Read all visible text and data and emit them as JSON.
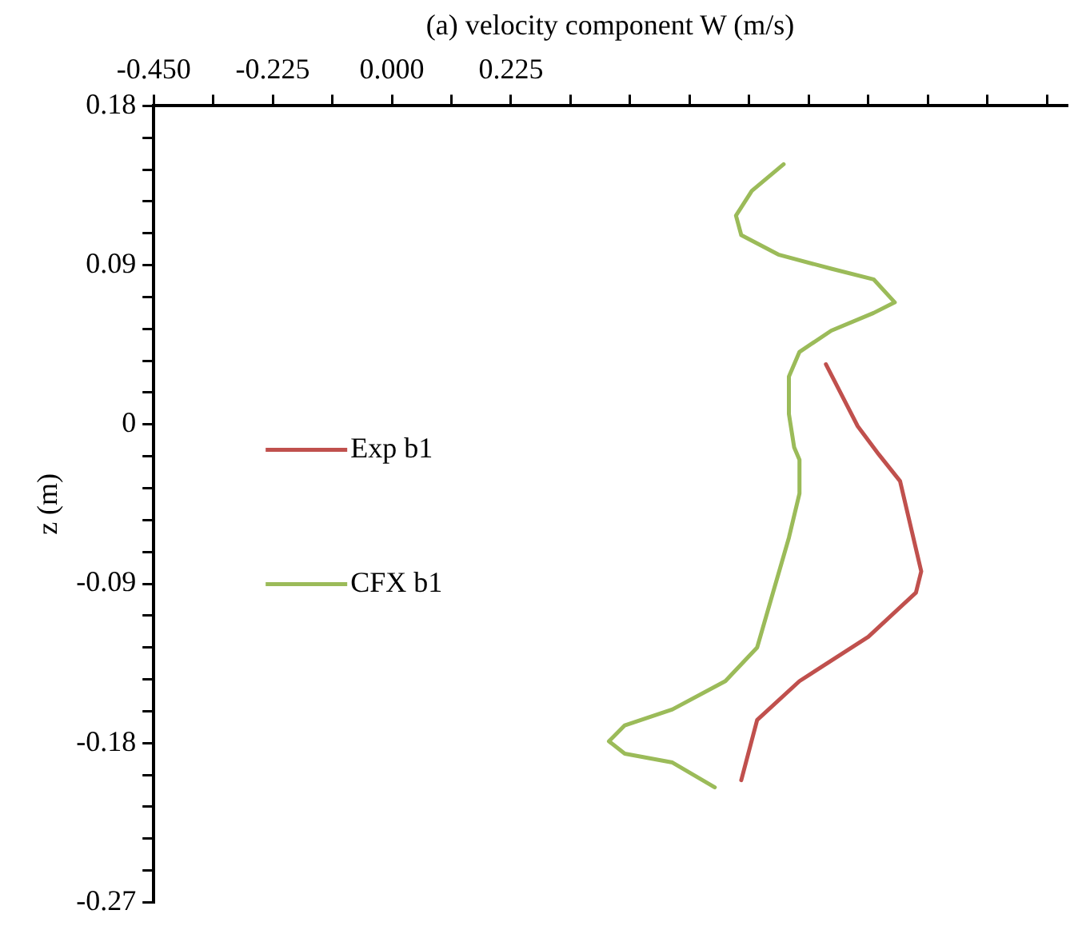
{
  "chart_data": {
    "type": "line",
    "xlabel": "(a) velocity component W (m/s)",
    "ylabel": "z (m)",
    "xlim": [
      -0.45,
      1.275
    ],
    "xticks": [
      {
        "value": -0.45,
        "label": "-0.450"
      },
      {
        "value": -0.3375,
        "label": null
      },
      {
        "value": -0.225,
        "label": "-0.225"
      },
      {
        "value": -0.1125,
        "label": null
      },
      {
        "value": 0,
        "label": "0.000"
      },
      {
        "value": 0.1125,
        "label": null
      },
      {
        "value": 0.225,
        "label": "0.225"
      },
      {
        "value": 0.3375,
        "label": null
      },
      {
        "value": 0.45,
        "label": null
      },
      {
        "value": 0.5625,
        "label": null
      },
      {
        "value": 0.675,
        "label": null
      },
      {
        "value": 0.7875,
        "label": null
      },
      {
        "value": 0.9,
        "label": null
      },
      {
        "value": 1.0125,
        "label": null
      },
      {
        "value": 1.125,
        "label": null
      },
      {
        "value": 1.2375,
        "label": null
      }
    ],
    "ylim": [
      -0.27,
      0.18
    ],
    "yticks": [
      0.18,
      {
        "value": 0.162,
        "label": null
      },
      {
        "value": 0.144,
        "label": null
      },
      {
        "value": 0.126,
        "label": null
      },
      {
        "value": 0.108,
        "label": null
      },
      0.09,
      {
        "value": 0.072,
        "label": null
      },
      {
        "value": 0.054,
        "label": null
      },
      {
        "value": 0.036,
        "label": null
      },
      {
        "value": 0.018,
        "label": null
      },
      0,
      {
        "value": -0.018,
        "label": null
      },
      {
        "value": -0.036,
        "label": null
      },
      {
        "value": -0.054,
        "label": null
      },
      {
        "value": -0.072,
        "label": null
      },
      -0.09,
      {
        "value": -0.108,
        "label": null
      },
      {
        "value": -0.126,
        "label": null
      },
      {
        "value": -0.144,
        "label": null
      },
      {
        "value": -0.162,
        "label": null
      },
      -0.18,
      {
        "value": -0.198,
        "label": null
      },
      {
        "value": -0.216,
        "label": null
      },
      {
        "value": -0.234,
        "label": null
      },
      {
        "value": -0.252,
        "label": null
      },
      -0.27
    ],
    "grid": false,
    "legend": "center left",
    "marker": "none",
    "line_style": "solid",
    "series": [
      {
        "name": "Exp b1",
        "color": "#c0504d",
        "x": [
          0.82,
          0.88,
          0.92,
          0.96,
          1.0,
          0.99,
          0.9,
          0.77,
          0.69,
          0.66
        ],
        "values": [
          0.034,
          -0.001,
          -0.017,
          -0.032,
          -0.083,
          -0.095,
          -0.12,
          -0.145,
          -0.167,
          -0.201
        ]
      },
      {
        "name": "CFX b1",
        "color": "#9bbb59",
        "x": [
          0.74,
          0.68,
          0.65,
          0.66,
          0.73,
          0.83,
          0.91,
          0.95,
          0.91,
          0.83,
          0.77,
          0.75,
          0.75,
          0.76,
          0.77,
          0.77,
          0.75,
          0.72,
          0.69,
          0.63,
          0.53,
          0.44,
          0.41,
          0.44,
          0.53,
          0.61
        ],
        "values": [
          0.147,
          0.132,
          0.118,
          0.107,
          0.096,
          0.088,
          0.082,
          0.069,
          0.063,
          0.053,
          0.041,
          0.027,
          0.006,
          -0.013,
          -0.02,
          -0.039,
          -0.064,
          -0.095,
          -0.126,
          -0.145,
          -0.161,
          -0.17,
          -0.179,
          -0.186,
          -0.191,
          -0.205
        ]
      }
    ]
  }
}
